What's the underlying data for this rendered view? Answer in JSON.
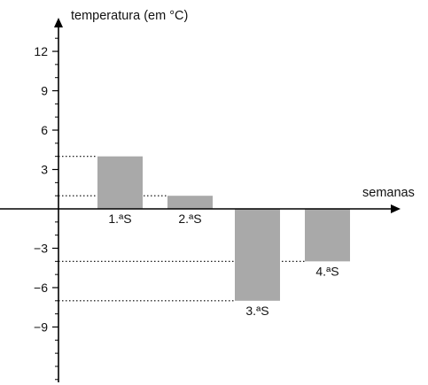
{
  "chart_data": {
    "type": "bar",
    "categories": [
      "1.ªS",
      "2.ªS",
      "3.ªS",
      "4.ªS"
    ],
    "values": [
      4,
      1,
      -7,
      -4
    ],
    "ylabel": "temperatura (em °C)",
    "xlabel": "semanas",
    "yticks": [
      12,
      9,
      6,
      3,
      -3,
      -6,
      -9
    ],
    "ytick_labels": [
      "12",
      "9",
      "6",
      "3",
      "−3",
      "−6",
      "−9"
    ],
    "ylim": [
      -13,
      15
    ],
    "minor_tick_step": 1,
    "grid": false,
    "legend": "none",
    "guide_lines": true,
    "bar_color": "#a9a9a9"
  }
}
